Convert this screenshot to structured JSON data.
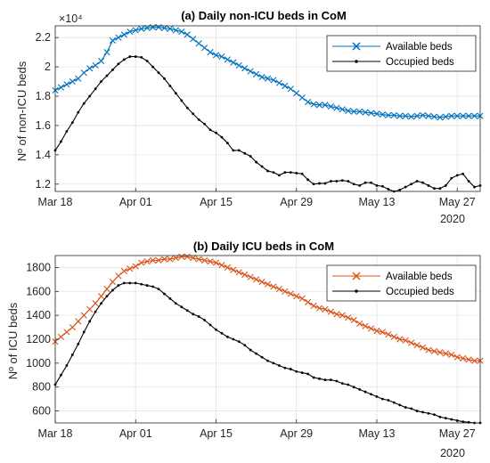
{
  "chart_data": [
    {
      "type": "line",
      "title": "(a) Daily non-ICU beds in CoM",
      "ylabel": "Nº of non-ICU beds",
      "xlabel": "",
      "y_multiplier_label": "×10⁴",
      "x_tick_labels": [
        "Mar 18",
        "Apr 01",
        "Apr 15",
        "Apr 29",
        "May 13",
        "May 27"
      ],
      "x_year_label": "2020",
      "x_start": "2020-03-18",
      "x_end": "2020-05-31",
      "xlim": [
        0,
        74
      ],
      "ylim": [
        11500,
        22800
      ],
      "y_ticks": [
        12000,
        14000,
        16000,
        18000,
        20000,
        22000
      ],
      "y_tick_labels": [
        "1.2",
        "1.4",
        "1.6",
        "1.8",
        "2",
        "2.2"
      ],
      "grid": true,
      "legend_position": "top-right",
      "series": [
        {
          "name": "Available beds",
          "color": "#0072BD",
          "marker": "x",
          "values": [
            18400,
            18600,
            18800,
            19000,
            19200,
            19600,
            19900,
            20100,
            20400,
            21000,
            21800,
            22000,
            22200,
            22400,
            22500,
            22600,
            22650,
            22700,
            22700,
            22650,
            22600,
            22500,
            22400,
            22200,
            21900,
            21600,
            21300,
            21000,
            20800,
            20700,
            20500,
            20300,
            20100,
            19900,
            19700,
            19500,
            19300,
            19200,
            19100,
            18900,
            18700,
            18500,
            18200,
            17900,
            17600,
            17450,
            17400,
            17400,
            17300,
            17200,
            17100,
            17000,
            16950,
            16950,
            16900,
            16850,
            16800,
            16750,
            16700,
            16700,
            16650,
            16650,
            16600,
            16650,
            16700,
            16650,
            16600,
            16550,
            16600,
            16650,
            16650,
            16650,
            16650,
            16650,
            16650
          ]
        },
        {
          "name": "Occupied beds",
          "color": "#000000",
          "marker": "dot",
          "values": [
            14300,
            14900,
            15600,
            16200,
            16900,
            17500,
            18000,
            18500,
            19000,
            19400,
            19800,
            20200,
            20500,
            20700,
            20700,
            20650,
            20400,
            20000,
            19600,
            19200,
            18700,
            18200,
            17700,
            17200,
            16800,
            16400,
            16100,
            15700,
            15500,
            15200,
            14800,
            14300,
            14300,
            14100,
            13900,
            13500,
            13200,
            12900,
            12800,
            12600,
            12800,
            12800,
            12750,
            12700,
            12300,
            12000,
            12050,
            12050,
            12200,
            12200,
            12250,
            12200,
            12000,
            11900,
            12100,
            12100,
            11900,
            11850,
            11650,
            11500,
            11600,
            11800,
            12000,
            12200,
            12100,
            11900,
            11700,
            11700,
            11900,
            12400,
            12600,
            12700,
            12200,
            11800,
            11900
          ]
        }
      ]
    },
    {
      "type": "line",
      "title": "(b) Daily ICU beds in CoM",
      "ylabel": "Nº of ICU beds",
      "xlabel": "",
      "x_tick_labels": [
        "Mar 18",
        "Apr 01",
        "Apr 15",
        "Apr 29",
        "May 13",
        "May 27"
      ],
      "x_year_label": "2020",
      "x_start": "2020-03-18",
      "x_end": "2020-05-31",
      "xlim": [
        0,
        74
      ],
      "ylim": [
        500,
        1900
      ],
      "y_ticks": [
        600,
        800,
        1000,
        1200,
        1400,
        1600,
        1800
      ],
      "y_tick_labels": [
        "600",
        "800",
        "1000",
        "1200",
        "1400",
        "1600",
        "1800"
      ],
      "grid": true,
      "legend_position": "top-right",
      "series": [
        {
          "name": "Available beds",
          "color": "#D95319",
          "marker": "x",
          "values": [
            1180,
            1220,
            1260,
            1300,
            1350,
            1400,
            1450,
            1500,
            1560,
            1620,
            1680,
            1730,
            1770,
            1790,
            1810,
            1840,
            1850,
            1860,
            1860,
            1870,
            1870,
            1880,
            1890,
            1890,
            1880,
            1870,
            1860,
            1850,
            1840,
            1820,
            1800,
            1780,
            1760,
            1740,
            1720,
            1700,
            1680,
            1660,
            1640,
            1620,
            1600,
            1580,
            1560,
            1540,
            1510,
            1480,
            1460,
            1450,
            1430,
            1410,
            1400,
            1380,
            1360,
            1330,
            1310,
            1290,
            1270,
            1260,
            1240,
            1220,
            1200,
            1190,
            1170,
            1150,
            1130,
            1110,
            1100,
            1090,
            1080,
            1070,
            1050,
            1040,
            1030,
            1020,
            1020
          ]
        },
        {
          "name": "Occupied beds",
          "color": "#000000",
          "marker": "dot",
          "values": [
            820,
            900,
            980,
            1070,
            1160,
            1260,
            1350,
            1430,
            1500,
            1560,
            1610,
            1650,
            1670,
            1670,
            1670,
            1660,
            1650,
            1640,
            1620,
            1580,
            1540,
            1500,
            1470,
            1440,
            1410,
            1390,
            1360,
            1320,
            1280,
            1250,
            1220,
            1200,
            1180,
            1150,
            1110,
            1080,
            1050,
            1020,
            1000,
            980,
            960,
            950,
            930,
            920,
            910,
            880,
            870,
            860,
            860,
            850,
            830,
            820,
            800,
            780,
            760,
            740,
            720,
            700,
            690,
            670,
            650,
            630,
            620,
            600,
            590,
            580,
            570,
            550,
            540,
            530,
            520,
            510,
            505,
            500,
            500
          ]
        }
      ]
    }
  ]
}
